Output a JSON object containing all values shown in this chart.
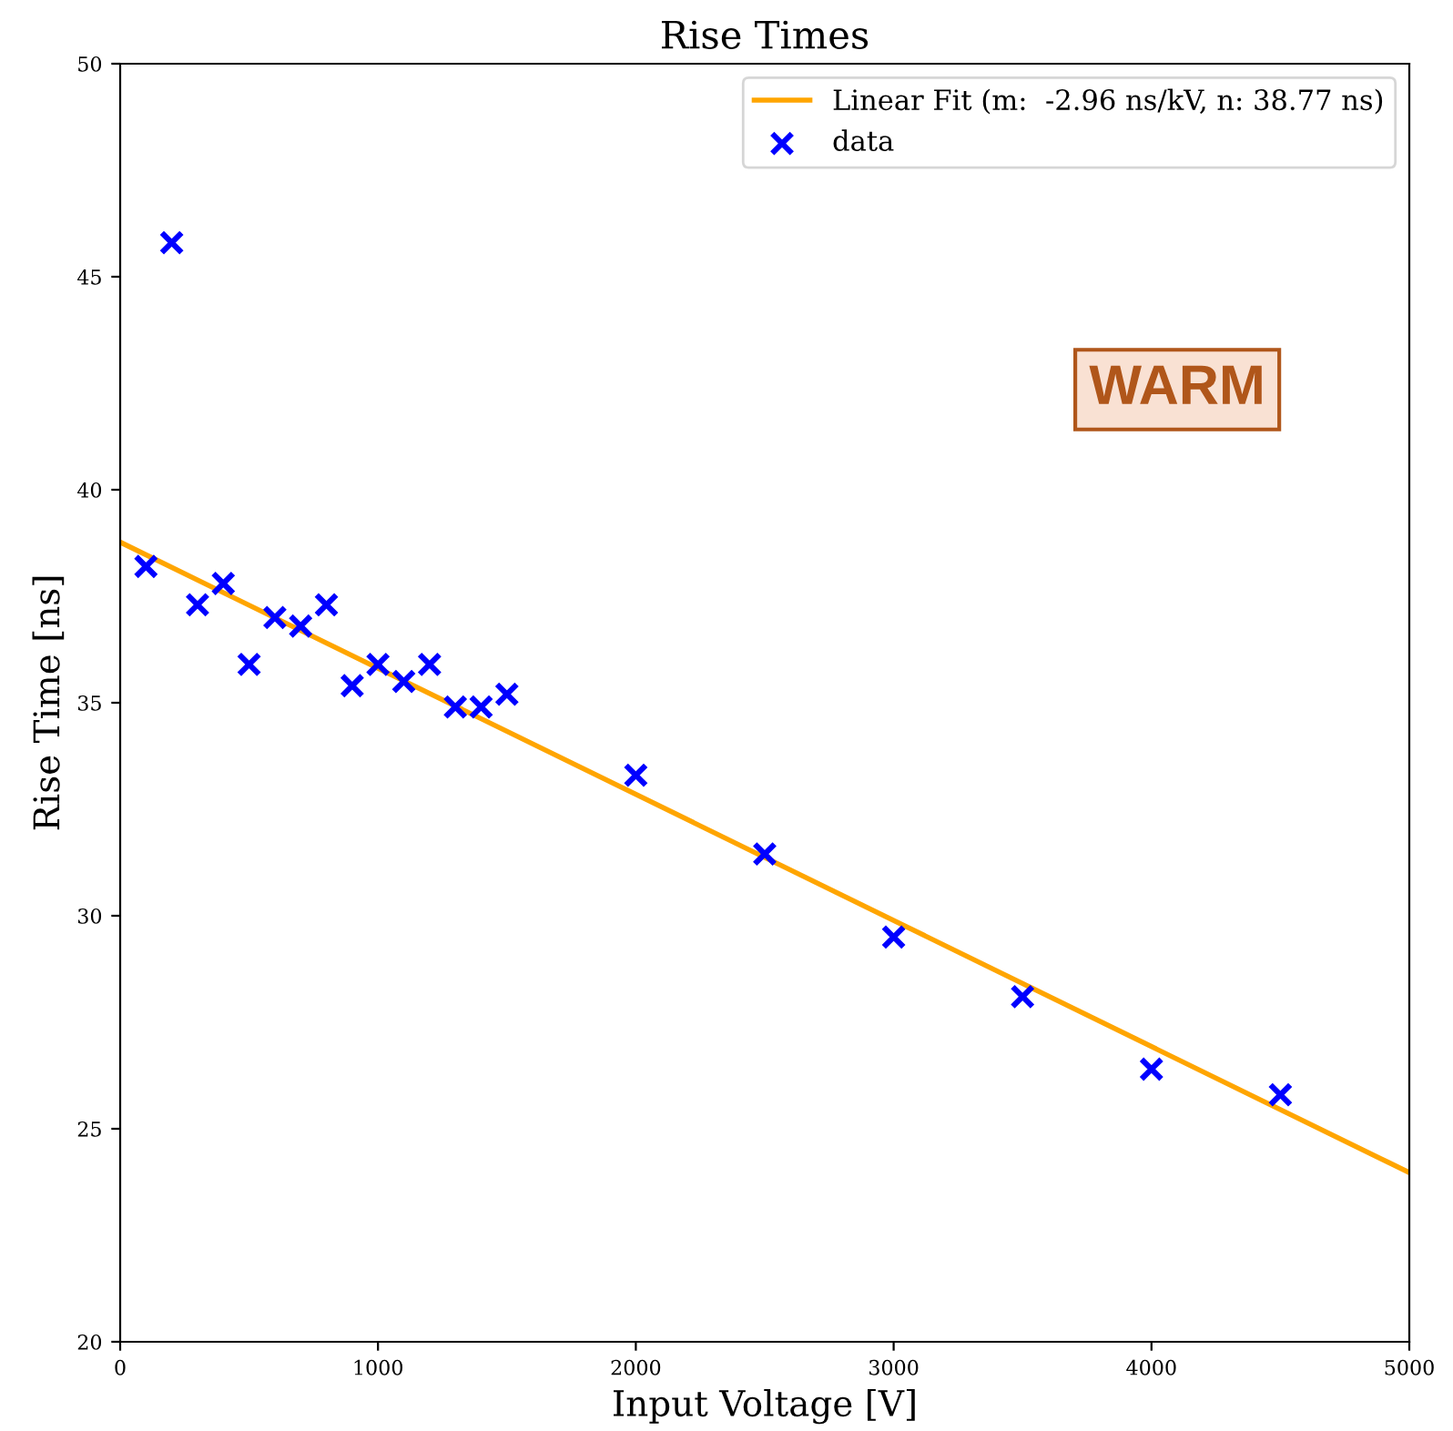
{
  "chart_data": {
    "type": "scatter",
    "title": "Rise Times",
    "xlabel": "Input Voltage [V]",
    "ylabel": "Rise Time [ns]",
    "xlim": [
      0,
      5000
    ],
    "ylim": [
      20,
      50
    ],
    "xticks": [
      0,
      1000,
      2000,
      3000,
      4000,
      5000
    ],
    "yticks": [
      20,
      25,
      30,
      35,
      40,
      45,
      50
    ],
    "grid": false,
    "legend": "top right",
    "annotations": [
      "WARM"
    ],
    "series": [
      {
        "name": "Linear Fit (m:  -2.96 ns/kV, n: 38.77 ns)",
        "type": "line",
        "color": "#ffa500",
        "x": [
          0,
          5000
        ],
        "values": [
          38.77,
          23.97
        ],
        "marker": "none"
      },
      {
        "name": "data",
        "color": "#0000ff",
        "marker": "cross",
        "x": [
          100,
          200,
          300,
          400,
          500,
          600,
          700,
          800,
          900,
          1000,
          1100,
          1200,
          1300,
          1400,
          1500,
          2000,
          2500,
          3000,
          3500,
          4000,
          4500
        ],
        "values": [
          38.2,
          45.8,
          37.3,
          37.8,
          35.9,
          37.0,
          36.8,
          37.3,
          35.4,
          35.9,
          35.5,
          35.9,
          34.9,
          34.9,
          35.2,
          33.3,
          31.45,
          29.5,
          28.1,
          26.4,
          25.8
        ]
      }
    ]
  }
}
